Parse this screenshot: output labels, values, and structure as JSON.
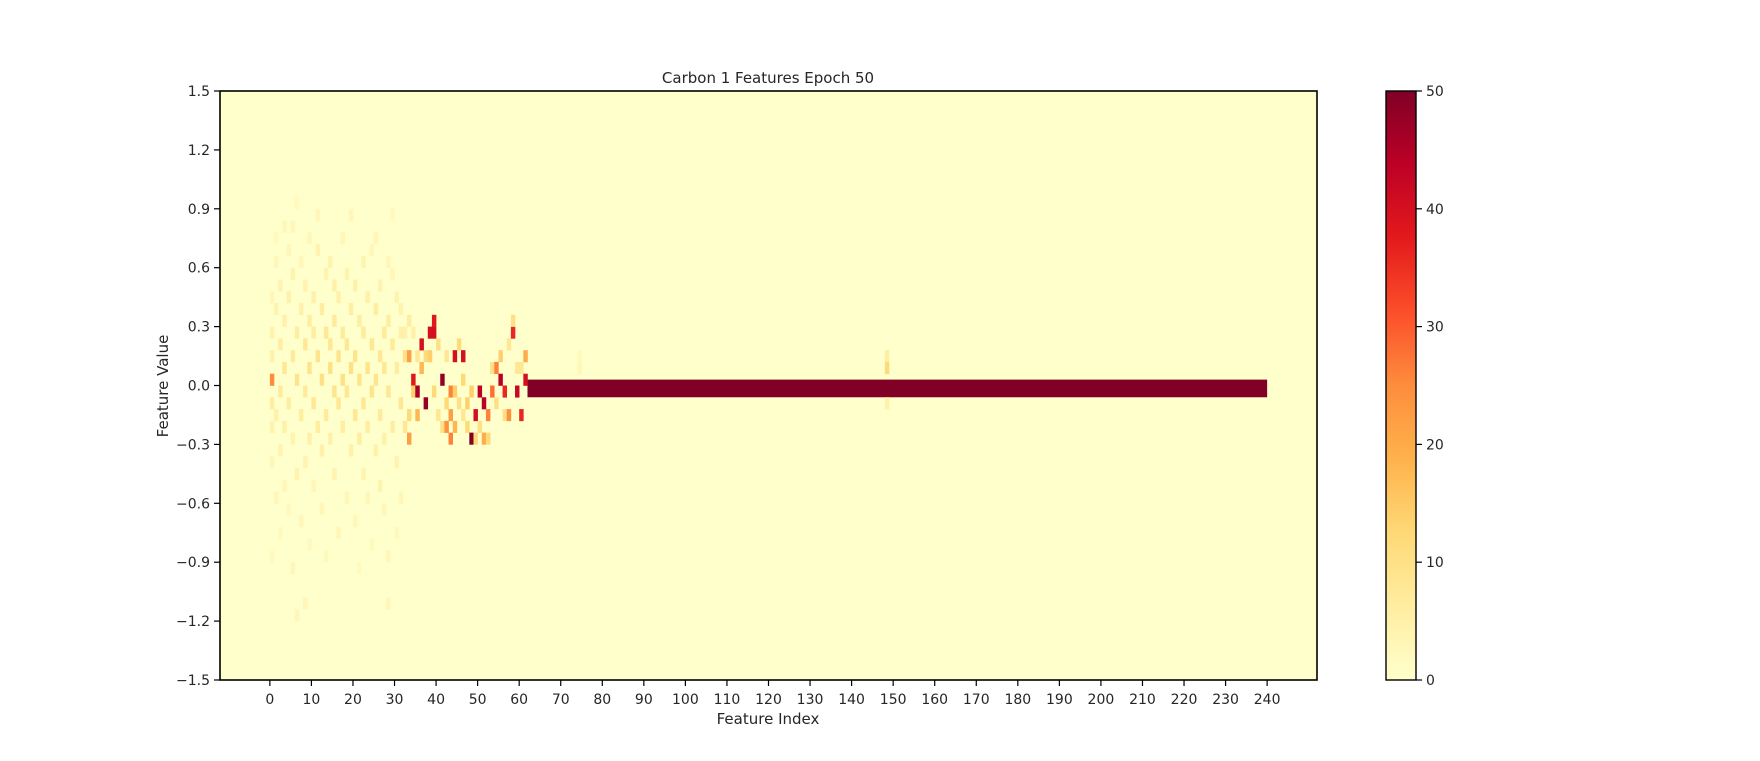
{
  "chart_data": {
    "type": "heatmap",
    "title": "Carbon 1 Features Epoch 50",
    "xlabel": "Feature Index",
    "ylabel": "Feature Value",
    "x_ticks": [
      0,
      10,
      20,
      30,
      40,
      50,
      60,
      70,
      80,
      90,
      100,
      110,
      120,
      130,
      140,
      150,
      160,
      170,
      180,
      190,
      200,
      210,
      220,
      230,
      240
    ],
    "x_tick_labels": [
      "0",
      "10",
      "20",
      "30",
      "40",
      "50",
      "60",
      "70",
      "80",
      "90",
      "100",
      "110",
      "120",
      "130",
      "140",
      "150",
      "160",
      "170",
      "180",
      "190",
      "200",
      "210",
      "220",
      "230",
      "240"
    ],
    "y_ticks": [
      -1.5,
      -1.2,
      -0.9,
      -0.6,
      -0.3,
      0.0,
      0.3,
      0.6,
      0.9,
      1.2,
      1.5
    ],
    "y_tick_labels": [
      "−1.5",
      "−1.2",
      "−0.9",
      "−0.6",
      "−0.3",
      "0.0",
      "0.3",
      "0.6",
      "0.9",
      "1.2",
      "1.5"
    ],
    "xlim": [
      -12,
      252
    ],
    "ylim": [
      -1.5,
      1.5
    ],
    "feature_count": 240,
    "bin_width": 0.06,
    "colorbar": {
      "label": "",
      "min": 0,
      "max": 50,
      "ticks": [
        0,
        10,
        20,
        30,
        40,
        50
      ],
      "tick_labels": [
        "0",
        "10",
        "20",
        "30",
        "40",
        "50"
      ],
      "colormap": "YlOrRd"
    },
    "saturated_band": {
      "x_start": 62,
      "x_end": 240,
      "y_low": -0.06,
      "y_high": 0.03,
      "value": 50
    },
    "cells": [
      {
        "x": 0,
        "y": 0.0,
        "v": 25
      },
      {
        "x": 0,
        "y": -0.12,
        "v": 6
      },
      {
        "x": 0,
        "y": 0.12,
        "v": 5
      },
      {
        "x": 0,
        "y": 0.24,
        "v": 4
      },
      {
        "x": 0,
        "y": -0.24,
        "v": 4
      },
      {
        "x": 0,
        "y": 0.42,
        "v": 3
      },
      {
        "x": 0,
        "y": -0.42,
        "v": 3
      },
      {
        "x": 0,
        "y": -0.9,
        "v": 2
      },
      {
        "x": 1,
        "y": 0.36,
        "v": 4
      },
      {
        "x": 1,
        "y": 0.6,
        "v": 3
      },
      {
        "x": 1,
        "y": -0.18,
        "v": 5
      },
      {
        "x": 1,
        "y": -0.6,
        "v": 3
      },
      {
        "x": 1,
        "y": 0.72,
        "v": 2
      },
      {
        "x": 2,
        "y": 0.18,
        "v": 6
      },
      {
        "x": 2,
        "y": -0.06,
        "v": 7
      },
      {
        "x": 2,
        "y": 0.48,
        "v": 4
      },
      {
        "x": 2,
        "y": -0.36,
        "v": 4
      },
      {
        "x": 2,
        "y": -0.78,
        "v": 2
      },
      {
        "x": 3,
        "y": 0.06,
        "v": 8
      },
      {
        "x": 3,
        "y": 0.3,
        "v": 5
      },
      {
        "x": 3,
        "y": 0.78,
        "v": 3
      },
      {
        "x": 3,
        "y": -0.24,
        "v": 5
      },
      {
        "x": 3,
        "y": -0.54,
        "v": 3
      },
      {
        "x": 4,
        "y": -0.12,
        "v": 6
      },
      {
        "x": 4,
        "y": 0.42,
        "v": 5
      },
      {
        "x": 4,
        "y": 0.66,
        "v": 3
      },
      {
        "x": 4,
        "y": -0.66,
        "v": 2
      },
      {
        "x": 5,
        "y": 0.12,
        "v": 7
      },
      {
        "x": 5,
        "y": -0.3,
        "v": 4
      },
      {
        "x": 5,
        "y": 0.54,
        "v": 4
      },
      {
        "x": 5,
        "y": -0.96,
        "v": 3
      },
      {
        "x": 5,
        "y": 0.78,
        "v": 3
      },
      {
        "x": 6,
        "y": 0.0,
        "v": 9
      },
      {
        "x": 6,
        "y": 0.24,
        "v": 6
      },
      {
        "x": 6,
        "y": -0.48,
        "v": 4
      },
      {
        "x": 6,
        "y": -1.2,
        "v": 3
      },
      {
        "x": 6,
        "y": 0.9,
        "v": 2
      },
      {
        "x": 7,
        "y": -0.18,
        "v": 6
      },
      {
        "x": 7,
        "y": 0.36,
        "v": 5
      },
      {
        "x": 7,
        "y": 0.6,
        "v": 3
      },
      {
        "x": 7,
        "y": -0.72,
        "v": 3
      },
      {
        "x": 8,
        "y": 0.18,
        "v": 8
      },
      {
        "x": 8,
        "y": -0.06,
        "v": 7
      },
      {
        "x": 8,
        "y": 0.48,
        "v": 4
      },
      {
        "x": 8,
        "y": -1.14,
        "v": 3
      },
      {
        "x": 8,
        "y": -0.42,
        "v": 4
      },
      {
        "x": 9,
        "y": 0.06,
        "v": 9
      },
      {
        "x": 9,
        "y": 0.3,
        "v": 6
      },
      {
        "x": 9,
        "y": -0.3,
        "v": 5
      },
      {
        "x": 9,
        "y": 0.72,
        "v": 3
      },
      {
        "x": 9,
        "y": -0.84,
        "v": 2
      },
      {
        "x": 10,
        "y": -0.12,
        "v": 8
      },
      {
        "x": 10,
        "y": 0.42,
        "v": 5
      },
      {
        "x": 10,
        "y": 0.24,
        "v": 6
      },
      {
        "x": 10,
        "y": -0.54,
        "v": 3
      },
      {
        "x": 11,
        "y": 0.12,
        "v": 9
      },
      {
        "x": 11,
        "y": 0.66,
        "v": 4
      },
      {
        "x": 11,
        "y": -0.24,
        "v": 6
      },
      {
        "x": 11,
        "y": 0.84,
        "v": 3
      },
      {
        "x": 12,
        "y": 0.0,
        "v": 10
      },
      {
        "x": 12,
        "y": 0.36,
        "v": 6
      },
      {
        "x": 12,
        "y": -0.36,
        "v": 5
      },
      {
        "x": 12,
        "y": -0.66,
        "v": 3
      },
      {
        "x": 13,
        "y": 0.24,
        "v": 8
      },
      {
        "x": 13,
        "y": -0.18,
        "v": 7
      },
      {
        "x": 13,
        "y": 0.54,
        "v": 4
      },
      {
        "x": 13,
        "y": -0.9,
        "v": 2
      },
      {
        "x": 14,
        "y": 0.06,
        "v": 10
      },
      {
        "x": 14,
        "y": 0.18,
        "v": 8
      },
      {
        "x": 14,
        "y": -0.3,
        "v": 5
      },
      {
        "x": 14,
        "y": 0.6,
        "v": 4
      },
      {
        "x": 15,
        "y": -0.06,
        "v": 9
      },
      {
        "x": 15,
        "y": 0.3,
        "v": 7
      },
      {
        "x": 15,
        "y": 0.48,
        "v": 5
      },
      {
        "x": 15,
        "y": -0.48,
        "v": 4
      },
      {
        "x": 16,
        "y": 0.12,
        "v": 9
      },
      {
        "x": 16,
        "y": -0.12,
        "v": 8
      },
      {
        "x": 16,
        "y": 0.42,
        "v": 5
      },
      {
        "x": 16,
        "y": -0.78,
        "v": 3
      },
      {
        "x": 17,
        "y": 0.0,
        "v": 10
      },
      {
        "x": 17,
        "y": 0.24,
        "v": 7
      },
      {
        "x": 17,
        "y": -0.24,
        "v": 6
      },
      {
        "x": 17,
        "y": 0.72,
        "v": 3
      },
      {
        "x": 18,
        "y": 0.18,
        "v": 8
      },
      {
        "x": 18,
        "y": -0.06,
        "v": 8
      },
      {
        "x": 18,
        "y": 0.54,
        "v": 4
      },
      {
        "x": 18,
        "y": -0.6,
        "v": 3
      },
      {
        "x": 19,
        "y": 0.06,
        "v": 10
      },
      {
        "x": 19,
        "y": 0.36,
        "v": 6
      },
      {
        "x": 19,
        "y": -0.36,
        "v": 5
      },
      {
        "x": 19,
        "y": 0.84,
        "v": 3
      },
      {
        "x": 20,
        "y": -0.18,
        "v": 8
      },
      {
        "x": 20,
        "y": 0.12,
        "v": 9
      },
      {
        "x": 20,
        "y": 0.48,
        "v": 5
      },
      {
        "x": 20,
        "y": -0.72,
        "v": 3
      },
      {
        "x": 21,
        "y": 0.0,
        "v": 9
      },
      {
        "x": 21,
        "y": 0.3,
        "v": 6
      },
      {
        "x": 21,
        "y": -0.3,
        "v": 6
      },
      {
        "x": 21,
        "y": -0.96,
        "v": 2
      },
      {
        "x": 22,
        "y": 0.24,
        "v": 7
      },
      {
        "x": 22,
        "y": -0.12,
        "v": 8
      },
      {
        "x": 22,
        "y": 0.6,
        "v": 4
      },
      {
        "x": 22,
        "y": -0.48,
        "v": 4
      },
      {
        "x": 23,
        "y": 0.06,
        "v": 9
      },
      {
        "x": 23,
        "y": 0.42,
        "v": 5
      },
      {
        "x": 23,
        "y": -0.24,
        "v": 6
      },
      {
        "x": 23,
        "y": -0.6,
        "v": 3
      },
      {
        "x": 24,
        "y": 0.18,
        "v": 8
      },
      {
        "x": 24,
        "y": -0.06,
        "v": 9
      },
      {
        "x": 24,
        "y": 0.66,
        "v": 3
      },
      {
        "x": 24,
        "y": -0.84,
        "v": 2
      },
      {
        "x": 25,
        "y": 0.0,
        "v": 9
      },
      {
        "x": 25,
        "y": 0.36,
        "v": 6
      },
      {
        "x": 25,
        "y": -0.36,
        "v": 5
      },
      {
        "x": 25,
        "y": 0.72,
        "v": 3
      },
      {
        "x": 26,
        "y": 0.12,
        "v": 8
      },
      {
        "x": 26,
        "y": -0.18,
        "v": 7
      },
      {
        "x": 26,
        "y": 0.48,
        "v": 4
      },
      {
        "x": 26,
        "y": -0.54,
        "v": 4
      },
      {
        "x": 27,
        "y": 0.24,
        "v": 7
      },
      {
        "x": 27,
        "y": -0.3,
        "v": 5
      },
      {
        "x": 27,
        "y": 0.06,
        "v": 8
      },
      {
        "x": 27,
        "y": -0.66,
        "v": 3
      },
      {
        "x": 28,
        "y": -0.06,
        "v": 8
      },
      {
        "x": 28,
        "y": 0.3,
        "v": 6
      },
      {
        "x": 28,
        "y": 0.6,
        "v": 3
      },
      {
        "x": 28,
        "y": -1.14,
        "v": 3
      },
      {
        "x": 28,
        "y": -0.9,
        "v": 3
      },
      {
        "x": 29,
        "y": 0.18,
        "v": 7
      },
      {
        "x": 29,
        "y": -0.24,
        "v": 6
      },
      {
        "x": 29,
        "y": 0.54,
        "v": 3
      },
      {
        "x": 29,
        "y": 0.84,
        "v": 2
      },
      {
        "x": 30,
        "y": 0.06,
        "v": 6
      },
      {
        "x": 30,
        "y": 0.42,
        "v": 4
      },
      {
        "x": 30,
        "y": -0.42,
        "v": 4
      },
      {
        "x": 30,
        "y": -0.78,
        "v": 2
      },
      {
        "x": 31,
        "y": -0.12,
        "v": 8
      },
      {
        "x": 31,
        "y": 0.24,
        "v": 5
      },
      {
        "x": 31,
        "y": 0.36,
        "v": 4
      },
      {
        "x": 31,
        "y": -0.6,
        "v": 3
      },
      {
        "x": 32,
        "y": 0.12,
        "v": 10
      },
      {
        "x": 32,
        "y": -0.24,
        "v": 8
      },
      {
        "x": 32,
        "y": 0.24,
        "v": 5
      },
      {
        "x": 33,
        "y": 0.12,
        "v": 22
      },
      {
        "x": 33,
        "y": -0.18,
        "v": 12
      },
      {
        "x": 33,
        "y": -0.3,
        "v": 22
      },
      {
        "x": 33,
        "y": 0.3,
        "v": 6
      },
      {
        "x": 34,
        "y": 0.0,
        "v": 38
      },
      {
        "x": 34,
        "y": -0.06,
        "v": 14
      },
      {
        "x": 34,
        "y": 0.24,
        "v": 5
      },
      {
        "x": 35,
        "y": -0.06,
        "v": 46
      },
      {
        "x": 35,
        "y": -0.18,
        "v": 18
      },
      {
        "x": 35,
        "y": 0.12,
        "v": 8
      },
      {
        "x": 36,
        "y": 0.18,
        "v": 40
      },
      {
        "x": 36,
        "y": 0.06,
        "v": 18
      },
      {
        "x": 37,
        "y": -0.12,
        "v": 48
      },
      {
        "x": 37,
        "y": 0.12,
        "v": 12
      },
      {
        "x": 38,
        "y": 0.24,
        "v": 40
      },
      {
        "x": 38,
        "y": 0.12,
        "v": 14
      },
      {
        "x": 39,
        "y": 0.24,
        "v": 40
      },
      {
        "x": 39,
        "y": 0.3,
        "v": 38
      },
      {
        "x": 39,
        "y": -0.06,
        "v": 12
      },
      {
        "x": 40,
        "y": 0.18,
        "v": 10
      },
      {
        "x": 40,
        "y": -0.18,
        "v": 8
      },
      {
        "x": 41,
        "y": 0.0,
        "v": 48
      },
      {
        "x": 41,
        "y": -0.24,
        "v": 10
      },
      {
        "x": 42,
        "y": -0.12,
        "v": 12
      },
      {
        "x": 42,
        "y": -0.24,
        "v": 24
      },
      {
        "x": 42,
        "y": 0.12,
        "v": 8
      },
      {
        "x": 43,
        "y": -0.06,
        "v": 26
      },
      {
        "x": 43,
        "y": -0.18,
        "v": 22
      },
      {
        "x": 43,
        "y": -0.3,
        "v": 26
      },
      {
        "x": 44,
        "y": 0.12,
        "v": 40
      },
      {
        "x": 44,
        "y": -0.06,
        "v": 14
      },
      {
        "x": 44,
        "y": -0.24,
        "v": 18
      },
      {
        "x": 45,
        "y": 0.18,
        "v": 12
      },
      {
        "x": 45,
        "y": -0.12,
        "v": 10
      },
      {
        "x": 46,
        "y": 0.0,
        "v": 12
      },
      {
        "x": 46,
        "y": 0.12,
        "v": 40
      },
      {
        "x": 46,
        "y": -0.18,
        "v": 8
      },
      {
        "x": 47,
        "y": -0.12,
        "v": 14
      },
      {
        "x": 47,
        "y": -0.24,
        "v": 12
      },
      {
        "x": 48,
        "y": -0.3,
        "v": 50
      },
      {
        "x": 48,
        "y": -0.06,
        "v": 14
      },
      {
        "x": 49,
        "y": -0.18,
        "v": 40
      },
      {
        "x": 49,
        "y": -0.3,
        "v": 12
      },
      {
        "x": 50,
        "y": -0.06,
        "v": 44
      },
      {
        "x": 50,
        "y": -0.24,
        "v": 10
      },
      {
        "x": 51,
        "y": -0.12,
        "v": 44
      },
      {
        "x": 51,
        "y": -0.3,
        "v": 20
      },
      {
        "x": 52,
        "y": -0.18,
        "v": 26
      },
      {
        "x": 52,
        "y": -0.3,
        "v": 12
      },
      {
        "x": 53,
        "y": -0.06,
        "v": 28
      },
      {
        "x": 53,
        "y": 0.06,
        "v": 10
      },
      {
        "x": 54,
        "y": 0.06,
        "v": 26
      },
      {
        "x": 54,
        "y": -0.12,
        "v": 10
      },
      {
        "x": 55,
        "y": 0.0,
        "v": 44
      },
      {
        "x": 55,
        "y": 0.12,
        "v": 14
      },
      {
        "x": 56,
        "y": -0.06,
        "v": 36
      },
      {
        "x": 56,
        "y": -0.18,
        "v": 10
      },
      {
        "x": 57,
        "y": -0.18,
        "v": 24
      },
      {
        "x": 57,
        "y": 0.18,
        "v": 8
      },
      {
        "x": 58,
        "y": 0.24,
        "v": 36
      },
      {
        "x": 58,
        "y": 0.3,
        "v": 10
      },
      {
        "x": 59,
        "y": -0.06,
        "v": 42
      },
      {
        "x": 59,
        "y": 0.06,
        "v": 8
      },
      {
        "x": 60,
        "y": -0.18,
        "v": 36
      },
      {
        "x": 60,
        "y": 0.06,
        "v": 8
      },
      {
        "x": 61,
        "y": 0.0,
        "v": 40
      },
      {
        "x": 61,
        "y": 0.12,
        "v": 20
      },
      {
        "x": 74,
        "y": 0.06,
        "v": 3
      },
      {
        "x": 74,
        "y": 0.12,
        "v": 2
      },
      {
        "x": 148,
        "y": 0.12,
        "v": 6
      },
      {
        "x": 148,
        "y": 0.06,
        "v": 12
      },
      {
        "x": 148,
        "y": -0.12,
        "v": 5
      }
    ]
  }
}
